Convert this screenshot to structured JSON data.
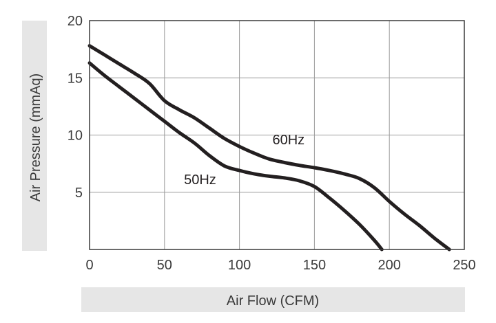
{
  "chart_data": {
    "type": "line",
    "xlabel": "Air Flow (CFM)",
    "ylabel": "Air Pressure (mmAq)",
    "xlim": [
      0,
      250
    ],
    "ylim": [
      0,
      20
    ],
    "x_ticks": [
      0,
      50,
      100,
      150,
      200,
      250
    ],
    "y_ticks": [
      5,
      10,
      15,
      20
    ],
    "grid": true,
    "legend": "inline labels",
    "series": [
      {
        "name": "60Hz",
        "label_at": [
          122,
          9.2
        ],
        "x": [
          0,
          10,
          20,
          30,
          40,
          50,
          60,
          70,
          80,
          90,
          100,
          110,
          120,
          130,
          140,
          150,
          160,
          170,
          180,
          190,
          200,
          210,
          220,
          230,
          240
        ],
        "y": [
          17.8,
          17.0,
          16.2,
          15.4,
          14.5,
          13.0,
          12.2,
          11.5,
          10.6,
          9.7,
          9.0,
          8.4,
          7.9,
          7.6,
          7.35,
          7.15,
          6.9,
          6.6,
          6.2,
          5.4,
          4.2,
          3.1,
          2.1,
          1.0,
          0.0
        ]
      },
      {
        "name": "50Hz",
        "label_at": [
          63,
          5.7
        ],
        "x": [
          0,
          10,
          20,
          30,
          40,
          50,
          60,
          70,
          80,
          90,
          100,
          110,
          120,
          130,
          140,
          150,
          160,
          170,
          180,
          190,
          195
        ],
        "y": [
          16.3,
          15.2,
          14.2,
          13.2,
          12.2,
          11.2,
          10.2,
          9.3,
          8.2,
          7.3,
          6.9,
          6.6,
          6.4,
          6.25,
          6.0,
          5.5,
          4.5,
          3.4,
          2.2,
          0.8,
          0.0
        ]
      }
    ],
    "colors": {
      "curve": "#231f20",
      "grid": "#9a9a9a",
      "frame": "#3a3a3a",
      "title_band": "#e6e6e6",
      "text": "#3a3a3a"
    }
  }
}
